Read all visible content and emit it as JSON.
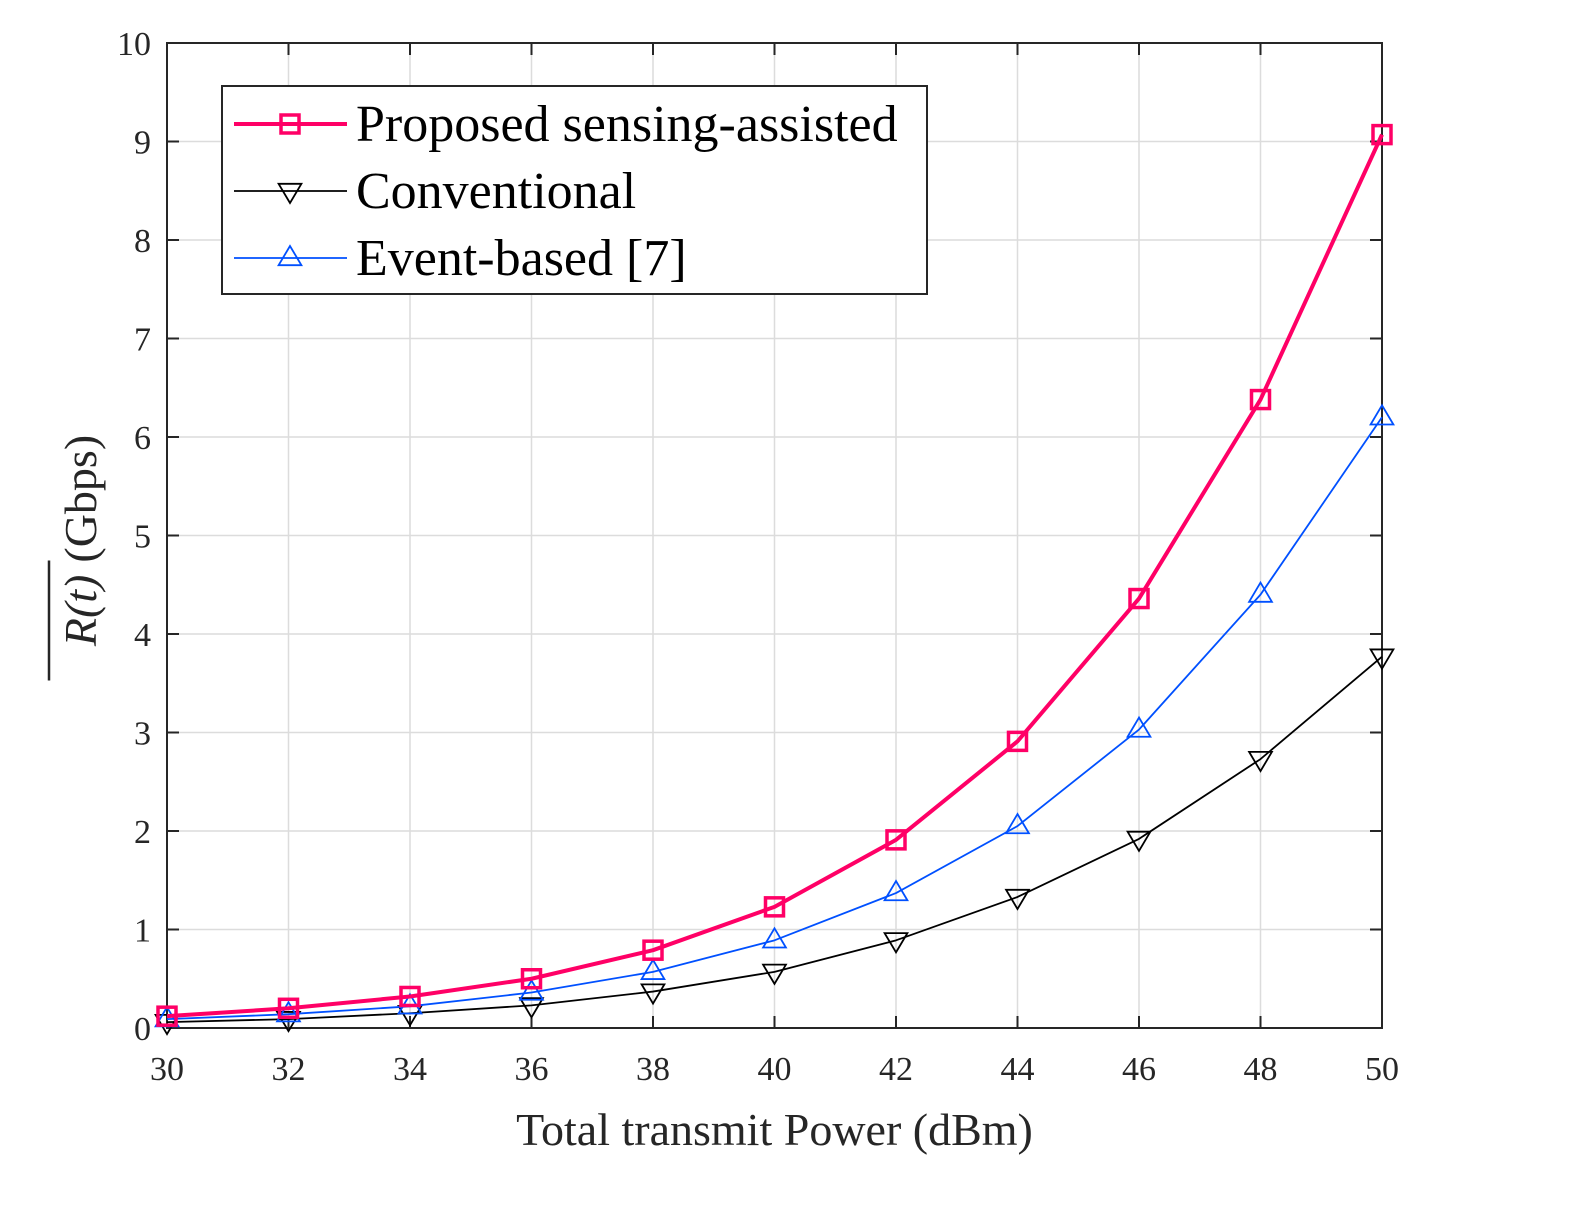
{
  "chart_data": {
    "type": "line",
    "title": "",
    "xlabel": "Total transmit Power (dBm)",
    "ylabel": "R(t) (Gbps)",
    "ylabel_symbol": "R(t)",
    "ylabel_unit": "(Gbps)",
    "x": [
      30,
      32,
      34,
      36,
      38,
      40,
      42,
      44,
      46,
      48,
      50
    ],
    "xlim": [
      30,
      50
    ],
    "ylim": [
      0,
      10
    ],
    "xticks": [
      30,
      32,
      34,
      36,
      38,
      40,
      42,
      44,
      46,
      48,
      50
    ],
    "yticks": [
      0,
      1,
      2,
      3,
      4,
      5,
      6,
      7,
      8,
      9,
      10
    ],
    "grid": true,
    "legend_position": "top-left",
    "series": [
      {
        "name": "Proposed sensing-assisted",
        "color": "#ff0066",
        "marker": "square",
        "line_width": "thick",
        "values": [
          0.12,
          0.2,
          0.32,
          0.5,
          0.79,
          1.23,
          1.91,
          2.91,
          4.36,
          6.38,
          9.07
        ]
      },
      {
        "name": "Conventional",
        "color": "#000000",
        "marker": "triangle-down",
        "line_width": "thin",
        "values": [
          0.06,
          0.09,
          0.15,
          0.23,
          0.37,
          0.57,
          0.89,
          1.33,
          1.92,
          2.73,
          3.77
        ]
      },
      {
        "name": "Event-based [7]",
        "color": "#0050ff",
        "marker": "triangle-up",
        "line_width": "thin",
        "values": [
          0.09,
          0.14,
          0.22,
          0.36,
          0.57,
          0.89,
          1.37,
          2.05,
          3.03,
          4.4,
          6.2
        ]
      }
    ]
  }
}
